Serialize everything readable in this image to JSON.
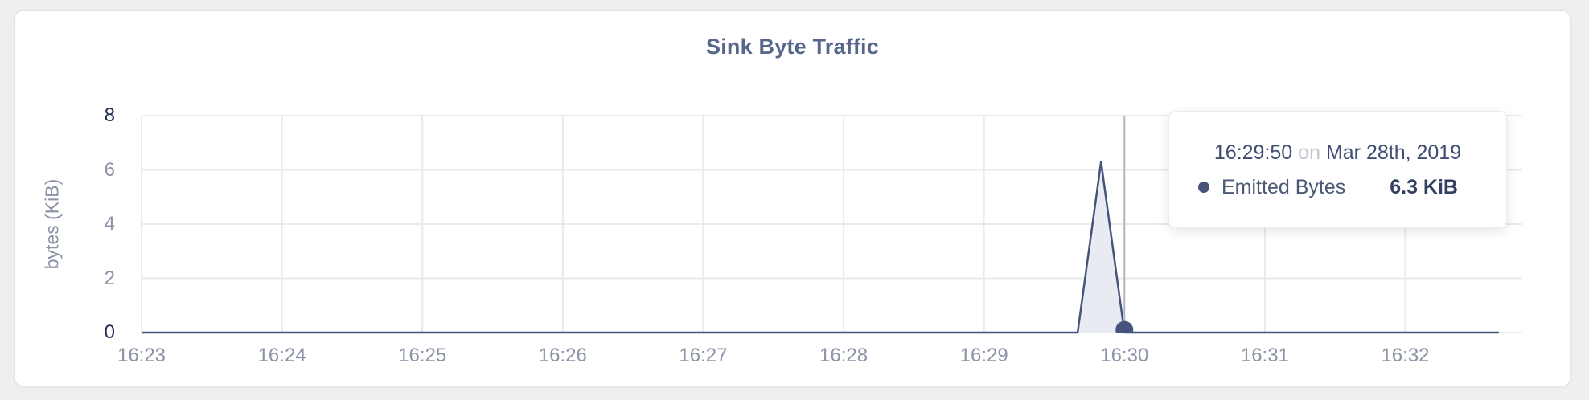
{
  "header": {
    "title": "Sink Byte Traffic"
  },
  "chart_data": {
    "type": "area",
    "title": "Sink Byte Traffic",
    "xlabel": "",
    "ylabel": "bytes (KiB)",
    "ylim": [
      0,
      8
    ],
    "y_ticks": [
      0,
      2,
      4,
      6,
      8
    ],
    "x_ticks": [
      "16:23",
      "16:24",
      "16:25",
      "16:26",
      "16:27",
      "16:28",
      "16:29",
      "16:30",
      "16:31",
      "16:32"
    ],
    "x_axis_start": "16:23:00",
    "x_axis_end": "16:32:50",
    "grid": true,
    "legend_position": "none",
    "series": [
      {
        "name": "Emitted Bytes",
        "points": [
          [
            "16:23:00",
            0
          ],
          [
            "16:29:40",
            0
          ],
          [
            "16:29:50",
            6.3
          ],
          [
            "16:30:00",
            0
          ],
          [
            "16:32:40",
            0
          ]
        ]
      }
    ],
    "hover": {
      "time": "16:30:00",
      "value": 0.1
    }
  },
  "tooltip": {
    "time": "16:29:50",
    "connector": "on",
    "date": "Mar 28th, 2019",
    "series_name": "Emitted Bytes",
    "value": "6.3 KiB",
    "bullet_icon": "dot-icon"
  },
  "colors": {
    "page_bg": "#efeff0",
    "card_bg": "#ffffff",
    "title_color": "#57678c",
    "axis_title_color": "#8b93a6",
    "axis_tick_color": "#8d93a7",
    "axis_bound_color": "#232e52",
    "series_color": "#46537a",
    "series_fill": "#e9ebf3",
    "crosshair_color": "#b5b7bf",
    "tooltip_text": "#3f4d71",
    "tooltip_muted": "#c3c6d1",
    "tooltip_series": "#4a5874",
    "tooltip_value": "#333f63"
  }
}
